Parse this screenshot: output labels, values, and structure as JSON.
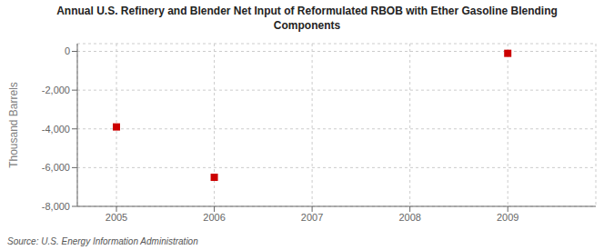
{
  "chart_data": {
    "type": "scatter",
    "title": "Annual U.S. Refinery and Blender Net Input of Reformulated RBOB with Ether Gasoline Blending\nComponents",
    "ylabel": "Thousand Barrels",
    "annotations": [
      "Source: U.S. Energy Information Administration"
    ],
    "x": [
      2005,
      2006,
      2009
    ],
    "values": [
      -3900,
      -6500,
      -100
    ],
    "xlim": [
      2004.6,
      2009.9
    ],
    "ylim": [
      -8000,
      400
    ],
    "xticks": [
      2005,
      2006,
      2007,
      2008,
      2009
    ],
    "yticks": [
      0,
      {
        "value": -2000,
        "label": "-2,000"
      },
      {
        "value": -4000,
        "label": "-4,000"
      },
      {
        "value": -6000,
        "label": "-6,000"
      },
      {
        "value": -8000,
        "label": "-8,000"
      }
    ],
    "color": "#cc0000",
    "marker": "square",
    "grid": true
  }
}
